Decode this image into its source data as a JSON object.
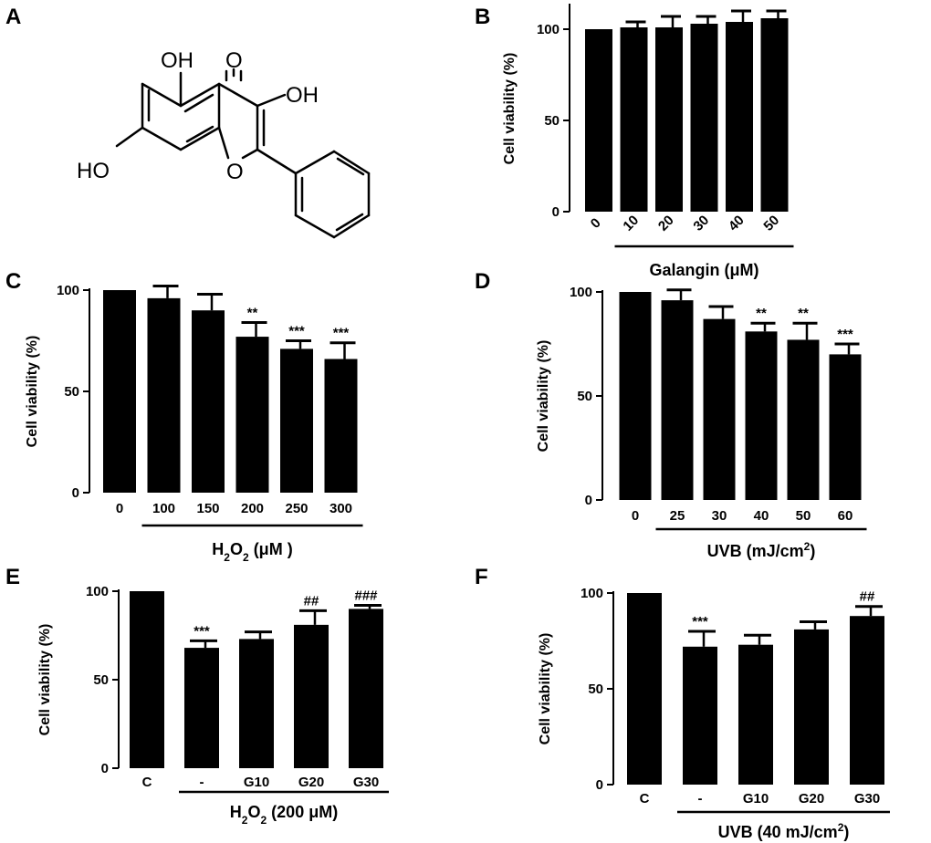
{
  "chart_data": [
    {
      "panel": "A",
      "type": "other",
      "structure_labels": {
        "oh1": "OH",
        "o_carbonyl": "O",
        "oh3": "OH",
        "ho7": "HO",
        "o_ring": "O"
      }
    },
    {
      "panel": "B",
      "type": "bar",
      "categories": [
        "0",
        "10",
        "20",
        "30",
        "40",
        "50"
      ],
      "values": [
        100,
        101,
        101,
        103,
        104,
        106
      ],
      "errors": [
        0,
        3,
        6,
        4,
        6,
        4
      ],
      "annotations": [
        "",
        "",
        "",
        "",
        "",
        ""
      ],
      "ylabel": "Cell viability (%)",
      "yticks": [
        0,
        50,
        100
      ],
      "ylim": [
        0,
        113
      ],
      "group_label": "Galangin (μM)",
      "group_from": 1,
      "rotated_ticks": true
    },
    {
      "panel": "C",
      "type": "bar",
      "categories": [
        "0",
        "100",
        "150",
        "200",
        "250",
        "300"
      ],
      "values": [
        100,
        96,
        90,
        77,
        71,
        66
      ],
      "errors": [
        0,
        6,
        8,
        7,
        4,
        8
      ],
      "annotations": [
        "",
        "",
        "",
        "**",
        "***",
        "***"
      ],
      "ylabel": "Cell viability (%)",
      "yticks": [
        0,
        50,
        100
      ],
      "ylim": [
        0,
        100
      ],
      "group_label_parts": [
        "H",
        "2",
        "O",
        "2",
        " (μM )"
      ],
      "group_from": 1,
      "rotated_ticks": false
    },
    {
      "panel": "D",
      "type": "bar",
      "categories": [
        "0",
        "25",
        "30",
        "40",
        "50",
        "60"
      ],
      "values": [
        100,
        96,
        87,
        81,
        77,
        70
      ],
      "errors": [
        0,
        5,
        6,
        4,
        8,
        5
      ],
      "annotations": [
        "",
        "",
        "",
        "**",
        "**",
        "***"
      ],
      "ylabel": "Cell viability (%)",
      "yticks": [
        0,
        50,
        100
      ],
      "ylim": [
        0,
        100
      ],
      "group_label_parts": [
        "UVB (mJ/cm",
        "2",
        ")"
      ],
      "group_from": 1,
      "rotated_ticks": false
    },
    {
      "panel": "E",
      "type": "bar",
      "categories": [
        "C",
        "-",
        "G10",
        "G20",
        "G30"
      ],
      "values": [
        100,
        68,
        73,
        81,
        90
      ],
      "errors": [
        0,
        4,
        4,
        8,
        2
      ],
      "annotations": [
        "",
        "***",
        "",
        "##",
        "###"
      ],
      "ylabel": "Cell viability (%)",
      "yticks": [
        0,
        50,
        100
      ],
      "ylim": [
        0,
        100
      ],
      "group_label_parts": [
        "H",
        "2",
        "O",
        "2",
        " (200 μM)"
      ],
      "group_from": 1,
      "rotated_ticks": false
    },
    {
      "panel": "F",
      "type": "bar",
      "categories": [
        "C",
        "-",
        "G10",
        "G20",
        "G30"
      ],
      "values": [
        100,
        72,
        73,
        81,
        88
      ],
      "errors": [
        0,
        8,
        5,
        4,
        5
      ],
      "annotations": [
        "",
        "***",
        "",
        "",
        "##"
      ],
      "ylabel": "Cell viability (%)",
      "yticks": [
        0,
        50,
        100
      ],
      "ylim": [
        0,
        100
      ],
      "group_label_parts": [
        "UVB (40 mJ/cm",
        "2",
        ")"
      ],
      "group_from": 1,
      "rotated_ticks": false
    }
  ]
}
